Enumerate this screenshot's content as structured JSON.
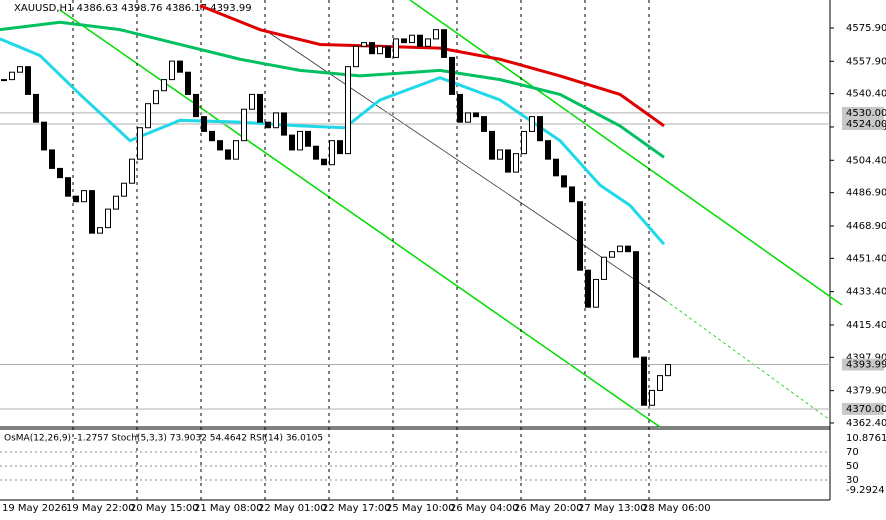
{
  "chart_data": {
    "type": "candlestick",
    "title": "XAUUSD,H1 4386.63 4398.76 4386.17 4393.99",
    "categories": [
      "19 May 2026",
      null,
      null,
      null,
      null,
      null,
      null,
      null,
      "19 May 22:00",
      null,
      null,
      null,
      null,
      null,
      null,
      null,
      "20 May 15:00",
      null,
      null,
      null,
      null,
      null,
      null,
      null,
      "21 May 08:00",
      null,
      null,
      null,
      null,
      null,
      null,
      null,
      "22 May 01:00",
      null,
      null,
      null,
      null,
      null,
      null,
      null,
      "22 May 17:00",
      null,
      null,
      null,
      null,
      null,
      null,
      null,
      "25 May 10:00",
      null,
      null,
      null,
      null,
      null,
      null,
      null,
      "26 May 04:00",
      null,
      null,
      null,
      null,
      null,
      null,
      null,
      "26 May 20:00",
      null,
      null,
      null,
      null,
      null,
      null,
      null,
      "27 May 13:00",
      null,
      null,
      null,
      null,
      null,
      null,
      null,
      "28 May 06:00",
      null,
      null,
      null
    ],
    "series": [
      {
        "color": "#000000",
        "values": [
          4548,
          4552,
          4555,
          4540,
          4525,
          4510,
          4500,
          4495,
          4485,
          4482,
          4488,
          4465,
          4468,
          4478,
          4485,
          4492,
          4505,
          4522,
          4535,
          4542,
          4548,
          4558,
          4552,
          4540,
          4528,
          4520,
          4515,
          4510,
          4505,
          4515,
          4532,
          4540,
          4525,
          4522,
          4530,
          4518,
          4510,
          4520,
          4512,
          4505,
          4502,
          4515,
          4508,
          4555,
          4566,
          4568,
          4562,
          4566,
          4560,
          4570,
          4568,
          4572,
          4566,
          4570,
          4575,
          4560,
          4540,
          4525,
          4530,
          4528,
          4520,
          4505,
          4510,
          4498,
          4508,
          4520,
          4528,
          4515,
          4505,
          4496,
          4490,
          4482,
          4445,
          4425,
          4440,
          4452,
          4455,
          4458,
          4455,
          4398,
          4372,
          4380,
          4388,
          4393.99
        ]
      }
    ],
    "overlays": [
      {
        "color": "#e00000",
        "x": [
          24.5,
          32,
          39.5,
          47,
          54.5,
          62,
          69.5,
          77,
          82.5
        ],
        "values": [
          4588,
          4575,
          4567,
          4566,
          4565,
          4559,
          4550,
          4540,
          4523
        ]
      },
      {
        "color": "#00c060",
        "x": [
          -0.5,
          7,
          14.5,
          22,
          29.5,
          37,
          44.5,
          54.5,
          62,
          69.5,
          77,
          82.5
        ],
        "values": [
          4575,
          4579,
          4575,
          4567,
          4559,
          4553,
          4550,
          4553,
          4548,
          4540,
          4523,
          4506
        ]
      },
      {
        "color": "#20d8e8",
        "x": [
          -0.5,
          4.5,
          9.5,
          15.75,
          22,
          29.5,
          37,
          42.6,
          47,
          54.5,
          62,
          69.5,
          74.5,
          78.25,
          82.5
        ],
        "values": [
          4570,
          4561,
          4540,
          4515,
          4526,
          4525,
          4523,
          4522,
          4537,
          4549,
          4537,
          4515,
          4491,
          4480,
          4459
        ]
      }
    ],
    "ylim": [
      4360.24,
      4591.03
    ],
    "yticks": [
      {
        "value": 4575.9,
        "label": "4575.90"
      },
      {
        "value": 4557.9,
        "label": "4557.90"
      },
      {
        "value": 4540.4,
        "label": "4540.40"
      },
      {
        "value": 4522.4,
        "label": "4522.40"
      },
      {
        "value": 4504.4,
        "label": "4504.40"
      },
      {
        "value": 4486.9,
        "label": "4486.90"
      },
      {
        "value": 4468.9,
        "label": "4468.90"
      },
      {
        "value": 4451.4,
        "label": "4451.40"
      },
      {
        "value": 4433.4,
        "label": "4433.40"
      },
      {
        "value": 4415.4,
        "label": "4415.40"
      },
      {
        "value": 4397.9,
        "label": "4397.90"
      },
      {
        "value": 4379.9,
        "label": "4379.90"
      },
      {
        "value": 4362.4,
        "label": "4362.40"
      }
    ],
    "levels": [
      {
        "value": 4530,
        "label": "4530.00"
      },
      {
        "value": 4524,
        "label": "4524.00"
      },
      {
        "value": 4393.99,
        "label": "4393.99"
      },
      {
        "value": 4370,
        "label": "4370.00"
      }
    ],
    "indicator": {
      "title": "OsMA(12,26,9) -1.2757 Stoch(5,3,3) 73.9032 54.4642 RSI(14) 36.0105",
      "labels": [
        "10.8761",
        "70",
        "50",
        "30",
        "-9.2924"
      ]
    }
  }
}
